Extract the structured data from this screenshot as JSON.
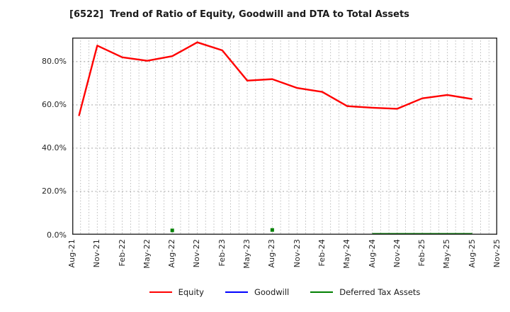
{
  "chart_data": {
    "type": "line",
    "title": "[6522]  Trend of Ratio of Equity, Goodwill and DTA to Total Assets",
    "x_tick_labels": [
      "Aug-21",
      "Nov-21",
      "Feb-22",
      "May-22",
      "Aug-22",
      "Nov-22",
      "Feb-23",
      "May-23",
      "Aug-23",
      "Nov-23",
      "Feb-24",
      "May-24",
      "Aug-24",
      "Nov-24",
      "Feb-25",
      "May-25",
      "Aug-25",
      "Nov-25"
    ],
    "x_tick_months": [
      0,
      3,
      6,
      9,
      12,
      15,
      18,
      21,
      24,
      27,
      30,
      33,
      36,
      39,
      42,
      45,
      48,
      51
    ],
    "x_total_months": 51,
    "ylim": [
      0,
      91.1
    ],
    "y_ticks": [
      {
        "label": "0.0%",
        "value": 0
      },
      {
        "label": "20.0%",
        "value": 20
      },
      {
        "label": "40.0%",
        "value": 40
      },
      {
        "label": "60.0%",
        "value": 60
      },
      {
        "label": "80.0%",
        "value": 80
      }
    ],
    "grid": {
      "vertical": "monthly dotted",
      "horizontal": "dotted at y ticks",
      "color": "#ababab",
      "on": true
    },
    "legend_position": "bottom-center",
    "axis_border_color": "#262626",
    "series": [
      {
        "name": "Equity",
        "color": "#ff0000",
        "x_months": [
          0.8,
          3,
          6,
          9,
          12,
          15,
          18,
          21,
          24,
          27,
          30,
          33,
          36,
          39,
          42,
          45,
          48
        ],
        "values": [
          54.9,
          87.4,
          82.0,
          80.4,
          82.5,
          88.9,
          85.2,
          71.2,
          71.9,
          67.8,
          66.0,
          59.4,
          58.7,
          58.2,
          63.0,
          64.6,
          62.7
        ],
        "isolated_markers": []
      },
      {
        "name": "Goodwill",
        "color": "#0000ff",
        "x_months": [],
        "values": [],
        "isolated_markers": []
      },
      {
        "name": "Deferred Tax Assets",
        "color": "#008000",
        "x_months": [
          36,
          39,
          42,
          45,
          48
        ],
        "values": [
          0.4,
          0.4,
          0.4,
          0.4,
          0.4
        ],
        "isolated_markers": [
          {
            "x_month": 12,
            "value": 2.0
          },
          {
            "x_month": 24,
            "value": 2.2
          }
        ]
      }
    ]
  }
}
